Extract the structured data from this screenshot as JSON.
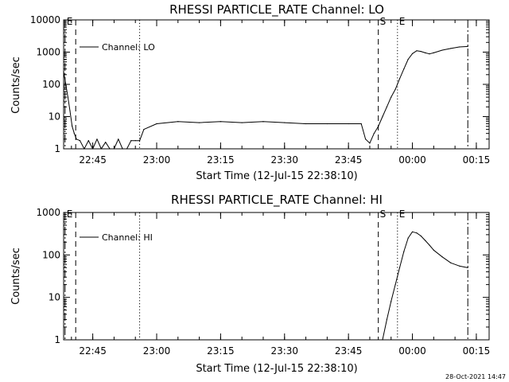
{
  "chart_data": [
    {
      "type": "line",
      "title": "RHESSI PARTICLE_RATE Channel: LO",
      "xlabel": "Start Time (12-Jul-15 22:38:10)",
      "ylabel": "Counts/sec",
      "yscale": "log",
      "xlim": [
        "22:38:10",
        "00:18"
      ],
      "ylim": [
        1,
        10000
      ],
      "x_tick_labels": [
        "22:45",
        "23:00",
        "23:15",
        "23:30",
        "23:45",
        "00:00",
        "00:15"
      ],
      "y_tick_labels": [
        "1",
        "10",
        "100",
        "1000",
        "10000"
      ],
      "legend": {
        "position": "top-left",
        "entries": [
          "Channel: LO"
        ]
      },
      "markers": [
        {
          "label": "E",
          "time": "22:38:30",
          "style": "dash-dot"
        },
        {
          "label": "",
          "time": "22:41",
          "style": "dashed"
        },
        {
          "label": "",
          "time": "22:56",
          "style": "dotted"
        },
        {
          "label": "S",
          "time": "23:52",
          "style": "dashed"
        },
        {
          "label": "E",
          "time": "23:56.5",
          "style": "dotted"
        },
        {
          "label": "",
          "time": "00:13",
          "style": "dash-dot"
        }
      ],
      "series": [
        {
          "name": "Channel: LO",
          "x": [
            "22:38:10",
            "22:38:40",
            "22:39:10",
            "22:39:40",
            "22:40:10",
            "22:40:40",
            "22:41:10",
            "22:42",
            "22:43",
            "22:44",
            "22:45",
            "22:46",
            "22:47",
            "22:48",
            "22:49",
            "22:50",
            "22:51",
            "22:52",
            "22:53",
            "22:54",
            "22:55",
            "22:56",
            "22:57",
            "23:00",
            "23:05",
            "23:10",
            "23:15",
            "23:20",
            "23:25",
            "23:30",
            "23:35",
            "23:40",
            "23:45",
            "23:48",
            "23:49",
            "23:50",
            "23:51",
            "23:52",
            "23:53",
            "23:54",
            "23:55",
            "23:56",
            "23:57",
            "23:58",
            "23:59",
            "00:00",
            "00:01",
            "00:02",
            "00:03",
            "00:04",
            "00:05",
            "00:07",
            "00:09",
            "00:11",
            "00:13"
          ],
          "values": [
            250,
            100,
            40,
            15,
            5,
            3,
            2,
            1.8,
            1,
            1.8,
            1,
            2,
            1,
            1.6,
            1,
            1,
            2,
            1,
            1,
            1.8,
            1.8,
            1.8,
            4,
            6,
            7,
            6.5,
            7,
            6.5,
            7,
            6.5,
            6,
            6,
            6,
            6,
            2,
            1.5,
            3,
            5,
            10,
            20,
            40,
            70,
            150,
            300,
            600,
            900,
            1100,
            1050,
            950,
            880,
            950,
            1150,
            1300,
            1450,
            1500
          ]
        }
      ]
    },
    {
      "type": "line",
      "title": "RHESSI PARTICLE_RATE Channel: HI",
      "xlabel": "Start Time (12-Jul-15 22:38:10)",
      "ylabel": "Counts/sec",
      "yscale": "log",
      "xlim": [
        "22:38:10",
        "00:18"
      ],
      "ylim": [
        1,
        1000
      ],
      "x_tick_labels": [
        "22:45",
        "23:00",
        "23:15",
        "23:30",
        "23:45",
        "00:00",
        "00:15"
      ],
      "y_tick_labels": [
        "1",
        "10",
        "100",
        "1000"
      ],
      "legend": {
        "position": "top-left",
        "entries": [
          "Channel: HI"
        ]
      },
      "markers": [
        {
          "label": "E",
          "time": "22:38:30",
          "style": "dash-dot"
        },
        {
          "label": "",
          "time": "22:41",
          "style": "dashed"
        },
        {
          "label": "",
          "time": "22:56",
          "style": "dotted"
        },
        {
          "label": "S",
          "time": "23:52",
          "style": "dashed"
        },
        {
          "label": "E",
          "time": "23:56.5",
          "style": "dotted"
        },
        {
          "label": "",
          "time": "00:13",
          "style": "dash-dot"
        }
      ],
      "series": [
        {
          "name": "Channel: HI",
          "x": [
            "23:53",
            "23:54",
            "23:55",
            "23:56",
            "23:57",
            "23:58",
            "23:59",
            "00:00",
            "00:01",
            "00:02",
            "00:03",
            "00:04",
            "00:05",
            "00:07",
            "00:09",
            "00:11",
            "00:13"
          ],
          "values": [
            1,
            3,
            8,
            20,
            50,
            120,
            250,
            350,
            330,
            280,
            220,
            170,
            130,
            90,
            65,
            55,
            50
          ]
        }
      ]
    }
  ],
  "timestamp": "28-Oct-2021 14:47"
}
